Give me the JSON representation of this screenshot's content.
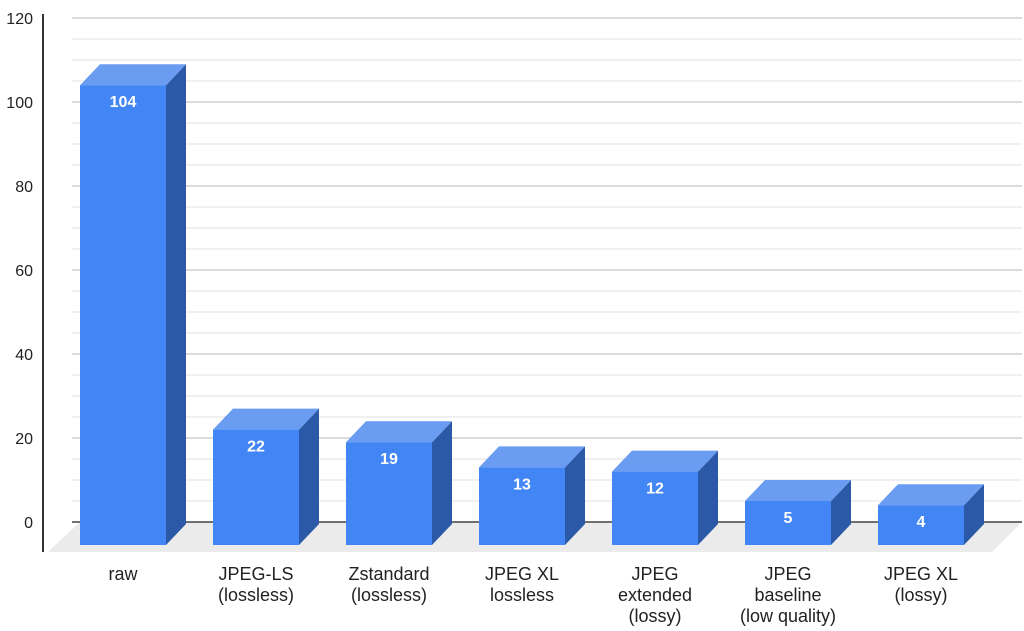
{
  "chart_data": {
    "type": "bar",
    "style": "3d-column",
    "title": "",
    "xlabel": "",
    "ylabel": "",
    "ylim": [
      0,
      120
    ],
    "yticks": [
      0,
      20,
      40,
      60,
      80,
      100,
      120
    ],
    "minor_grid_step": 5,
    "grid": true,
    "legend": "none",
    "categories": [
      "raw",
      "JPEG-LS (lossless)",
      "Zstandard (lossless)",
      "JPEG XL lossless",
      "JPEG extended (lossy)",
      "JPEG baseline (low quality)",
      "JPEG XL (lossy)"
    ],
    "category_lines": [
      [
        "raw"
      ],
      [
        "JPEG-LS",
        "(lossless)"
      ],
      [
        "Zstandard",
        "(lossless)"
      ],
      [
        "JPEG XL",
        "lossless"
      ],
      [
        "JPEG",
        "extended",
        "(lossy)"
      ],
      [
        "JPEG",
        "baseline",
        "(low quality)"
      ],
      [
        "JPEG XL",
        "(lossy)"
      ]
    ],
    "values": [
      104,
      22,
      19,
      13,
      12,
      5,
      4
    ],
    "data_labels": [
      "104",
      "22",
      "19",
      "13",
      "12",
      "5",
      "4"
    ],
    "colors": {
      "bar_front": "#4285f4",
      "bar_top": "#6a9cf2",
      "bar_side": "#2c58a8",
      "floor": "#ebebeb",
      "grid": "#e0e0e0",
      "axis": "#333333",
      "label_outside": "#4285f4"
    }
  }
}
